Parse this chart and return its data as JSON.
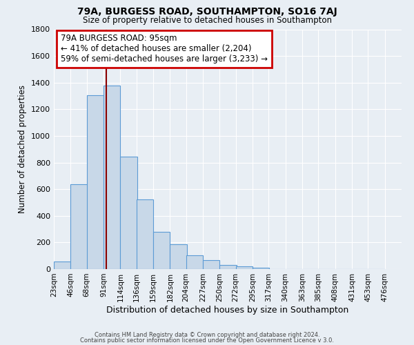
{
  "title": "79A, BURGESS ROAD, SOUTHAMPTON, SO16 7AJ",
  "subtitle": "Size of property relative to detached houses in Southampton",
  "xlabel": "Distribution of detached houses by size in Southampton",
  "ylabel": "Number of detached properties",
  "bar_color": "#c8d8e8",
  "bar_edge_color": "#5b9bd5",
  "background_color": "#e8eef4",
  "bin_labels": [
    "23sqm",
    "46sqm",
    "68sqm",
    "91sqm",
    "114sqm",
    "136sqm",
    "159sqm",
    "182sqm",
    "204sqm",
    "227sqm",
    "250sqm",
    "272sqm",
    "295sqm",
    "317sqm",
    "340sqm",
    "363sqm",
    "385sqm",
    "408sqm",
    "431sqm",
    "453sqm",
    "476sqm"
  ],
  "bin_edges": [
    23,
    46,
    68,
    91,
    114,
    136,
    159,
    182,
    204,
    227,
    250,
    272,
    295,
    317,
    340,
    363,
    385,
    408,
    431,
    453,
    476
  ],
  "bar_heights": [
    55,
    635,
    1305,
    1380,
    845,
    525,
    280,
    185,
    105,
    65,
    30,
    20,
    10,
    0,
    0,
    0,
    0,
    0,
    0,
    0
  ],
  "vline_x": 95,
  "vline_color": "#8b0000",
  "annotation_line1": "79A BURGESS ROAD: 95sqm",
  "annotation_line2": "← 41% of detached houses are smaller (2,204)",
  "annotation_line3": "59% of semi-detached houses are larger (3,233) →",
  "annotation_box_color": "#ffffff",
  "annotation_border_color": "#cc0000",
  "ylim": [
    0,
    1800
  ],
  "yticks": [
    0,
    200,
    400,
    600,
    800,
    1000,
    1200,
    1400,
    1600,
    1800
  ],
  "footer_line1": "Contains HM Land Registry data © Crown copyright and database right 2024.",
  "footer_line2": "Contains public sector information licensed under the Open Government Licence v 3.0."
}
